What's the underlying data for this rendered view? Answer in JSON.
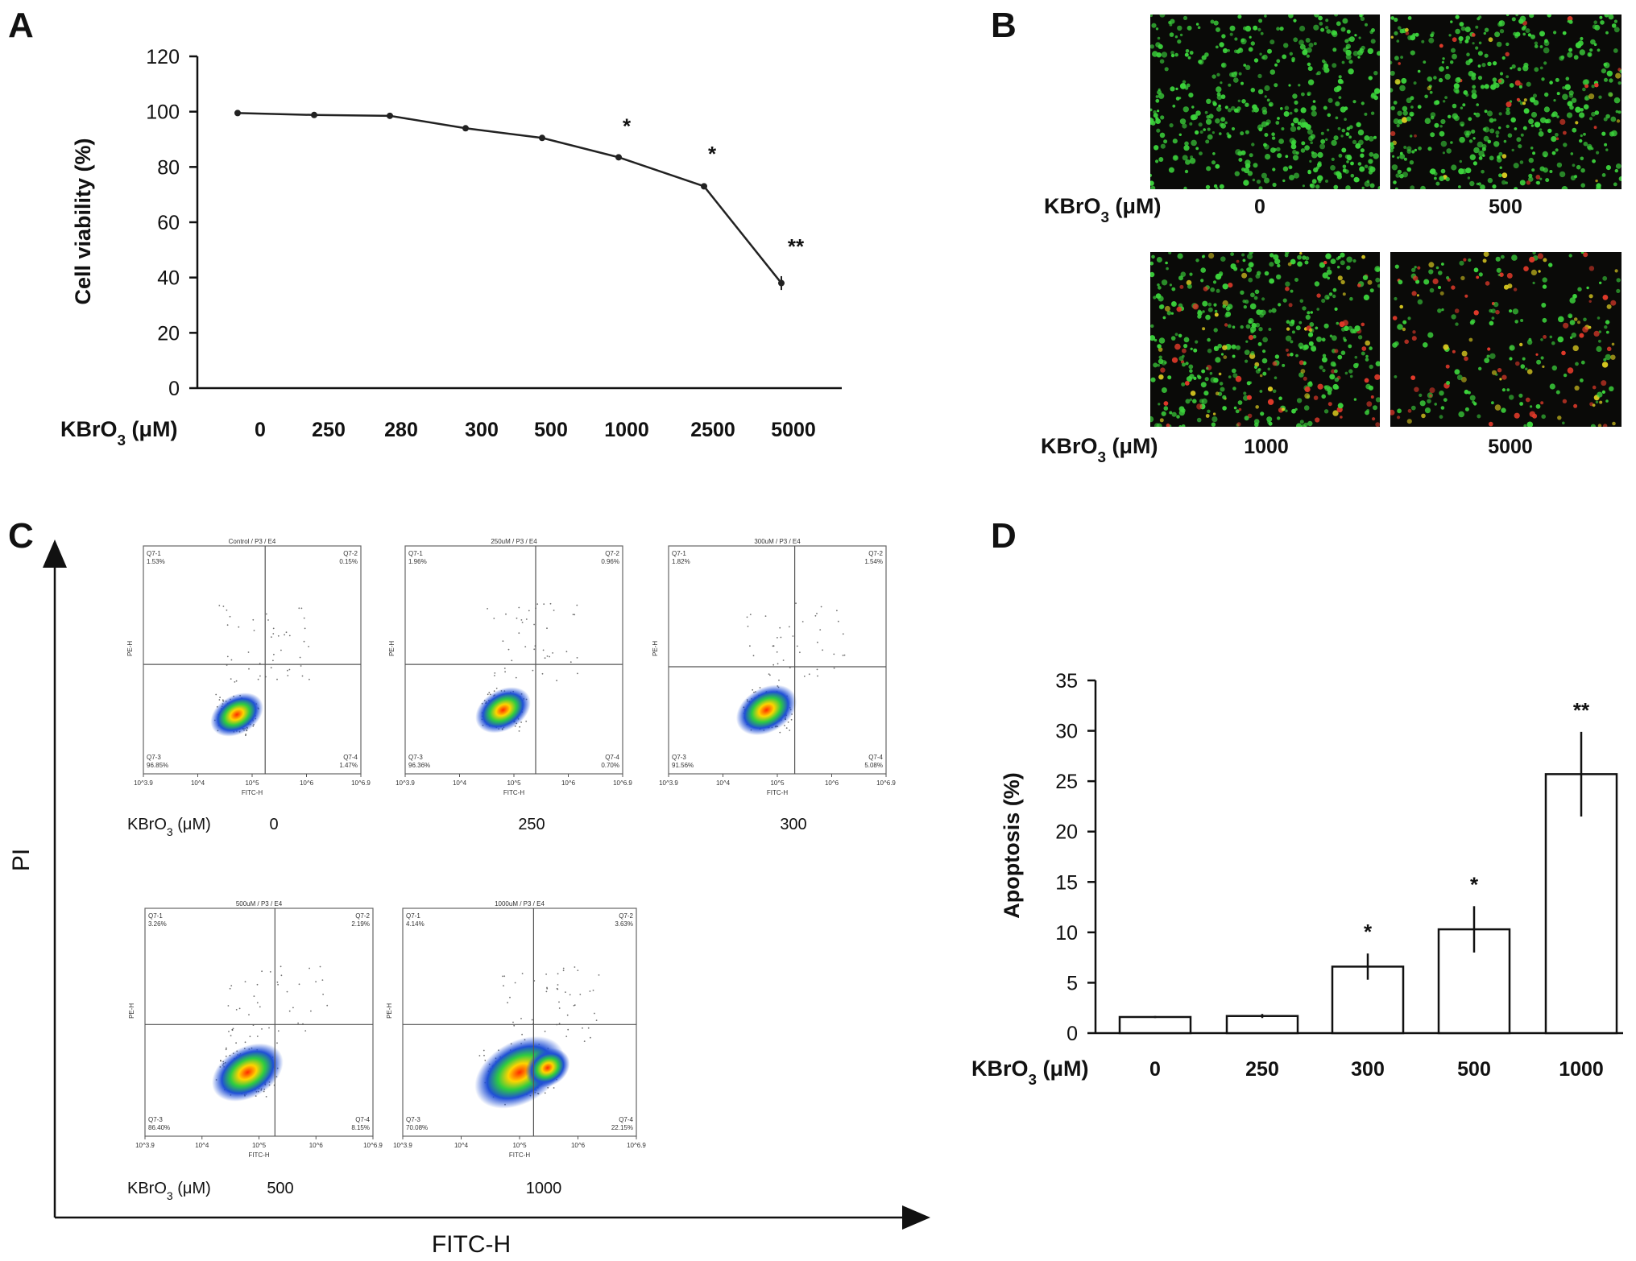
{
  "panels": {
    "A": "A",
    "B": "B",
    "C": "C",
    "D": "D"
  },
  "chart_data": [
    {
      "id": "A",
      "type": "line",
      "title": "",
      "xlabel": "KBrO3 (μM)",
      "ylabel": "Cell viability (%)",
      "categories": [
        "0",
        "250",
        "280",
        "300",
        "500",
        "1000",
        "2500",
        "5000"
      ],
      "values": [
        99.5,
        98.8,
        98.5,
        94,
        90.5,
        83.5,
        73,
        38
      ],
      "errors": [
        0.5,
        0.5,
        0.5,
        0.5,
        0.5,
        0.5,
        1.0,
        2.5
      ],
      "significance": [
        "",
        "",
        "",
        "",
        "",
        "*",
        "*",
        "**"
      ],
      "ylim": [
        0,
        120
      ],
      "yticks": [
        "0",
        "20",
        "40",
        "60",
        "80",
        "100",
        "120"
      ],
      "grid": false
    },
    {
      "id": "D",
      "type": "bar",
      "title": "",
      "xlabel": "KBrO3 (μM)",
      "ylabel": "Apoptosis (%)",
      "categories": [
        "0",
        "250",
        "300",
        "500",
        "1000"
      ],
      "values": [
        1.6,
        1.7,
        6.6,
        10.3,
        25.7
      ],
      "errors": [
        0.1,
        0.2,
        1.3,
        2.3,
        4.2
      ],
      "significance": [
        "",
        "",
        "*",
        "*",
        "**"
      ],
      "ylim": [
        0,
        35
      ],
      "yticks": [
        "0",
        "5",
        "10",
        "15",
        "20",
        "25",
        "30",
        "35"
      ],
      "grid": false
    }
  ],
  "panel_b": {
    "xlabel": "KBrO3 (μM)",
    "images": [
      {
        "label": "0",
        "red": 0.0
      },
      {
        "label": "500",
        "red": 0.08
      },
      {
        "label": "1000",
        "red": 0.22
      },
      {
        "label": "5000",
        "red": 0.45
      }
    ]
  },
  "panel_c": {
    "y_axis": "PI",
    "x_axis": "FITC-H",
    "row_label": "KBrO3 (μM)",
    "plots": [
      {
        "label": "0",
        "title": "Control / P3 / E4",
        "q1": "Q7-1\n1.53%",
        "q2": "Q7-2\n0.15%",
        "q3": "Q7-3\n96.85%",
        "q4": "Q7-4\n1.47%"
      },
      {
        "label": "250",
        "title": "250uM / P3 / E4",
        "q1": "Q7-1\n1.96%",
        "q2": "Q7-2\n0.96%",
        "q3": "Q7-3\n96.36%",
        "q4": "Q7-4\n0.70%"
      },
      {
        "label": "300",
        "title": "300uM / P3 / E4",
        "q1": "Q7-1\n1.82%",
        "q2": "Q7-2\n1.54%",
        "q3": "Q7-3\n91.56%",
        "q4": "Q7-4\n5.08%"
      },
      {
        "label": "500",
        "title": "500uM / P3 / E4",
        "q1": "Q7-1\n3.26%",
        "q2": "Q7-2\n2.19%",
        "q3": "Q7-3\n86.40%",
        "q4": "Q7-4\n8.15%"
      },
      {
        "label": "1000",
        "title": "1000uM / P3 / E4",
        "q1": "Q7-1\n4.14%",
        "q2": "Q7-2\n3.63%",
        "q3": "Q7-3\n70.08%",
        "q4": "Q7-4\n22.15%"
      }
    ],
    "tick_x": [
      "10^3.9",
      "10^4",
      "10^5",
      "10^6",
      "10^6.9"
    ],
    "ylabel_small": "PE-H",
    "xlabel_small": "FITC-H"
  },
  "colors": {
    "axis": "#111111",
    "bar_fill": "#ffffff",
    "bar_stroke": "#111111",
    "micro_bg": "#0a0a08",
    "cell_green": "#3cd43c",
    "cell_red": "#e23a2a"
  }
}
